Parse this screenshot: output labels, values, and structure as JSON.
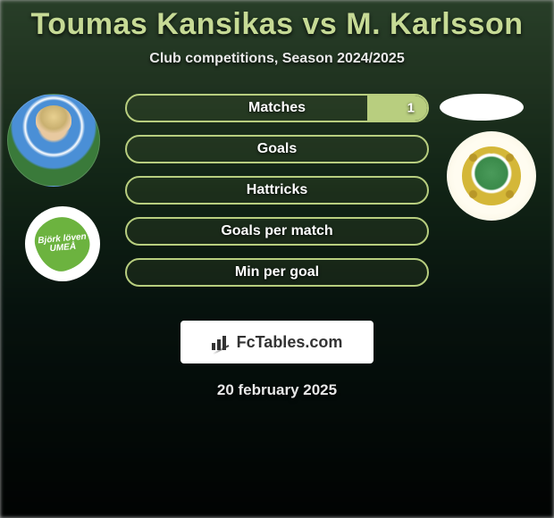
{
  "title": "Toumas Kansikas vs M. Karlsson",
  "subtitle": "Club competitions, Season 2024/2025",
  "date": "20 february 2025",
  "brand": "FcTables.com",
  "leaf_badge_text": "Björk löven UMEÅ",
  "colors": {
    "title": "#c6da95",
    "text_light": "#e8e8e8",
    "bar_border": "#b8ce7f",
    "bar_fill": "#b8ce7f",
    "brand_bg": "#ffffff",
    "brand_text": "#333333"
  },
  "stats": [
    {
      "label": "Matches",
      "left_pct": 0,
      "right_pct": 20,
      "left_val": "",
      "right_val": "1"
    },
    {
      "label": "Goals",
      "left_pct": 0,
      "right_pct": 0,
      "left_val": "",
      "right_val": ""
    },
    {
      "label": "Hattricks",
      "left_pct": 0,
      "right_pct": 0,
      "left_val": "",
      "right_val": ""
    },
    {
      "label": "Goals per match",
      "left_pct": 0,
      "right_pct": 0,
      "left_val": "",
      "right_val": ""
    },
    {
      "label": "Min per goal",
      "left_pct": 0,
      "right_pct": 0,
      "left_val": "",
      "right_val": ""
    }
  ]
}
